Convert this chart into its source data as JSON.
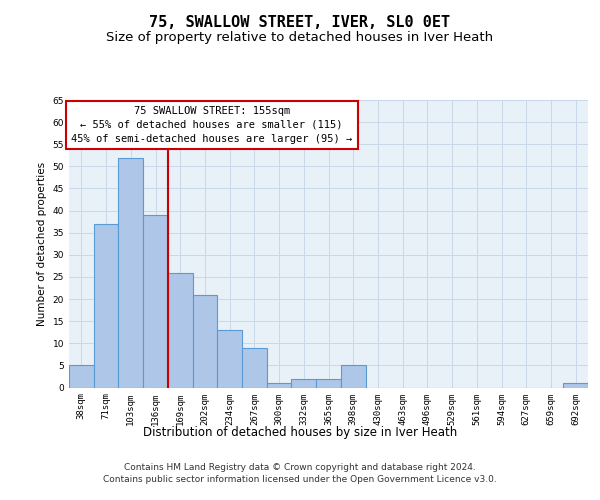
{
  "title": "75, SWALLOW STREET, IVER, SL0 0ET",
  "subtitle": "Size of property relative to detached houses in Iver Heath",
  "xlabel": "Distribution of detached houses by size in Iver Heath",
  "ylabel": "Number of detached properties",
  "categories": [
    "38sqm",
    "71sqm",
    "103sqm",
    "136sqm",
    "169sqm",
    "202sqm",
    "234sqm",
    "267sqm",
    "300sqm",
    "332sqm",
    "365sqm",
    "398sqm",
    "430sqm",
    "463sqm",
    "496sqm",
    "529sqm",
    "561sqm",
    "594sqm",
    "627sqm",
    "659sqm",
    "692sqm"
  ],
  "values": [
    5,
    37,
    52,
    39,
    26,
    21,
    13,
    9,
    1,
    2,
    2,
    5,
    0,
    0,
    0,
    0,
    0,
    0,
    0,
    0,
    1
  ],
  "bar_color": "#aec6e8",
  "bar_edge_color": "#5b9bd5",
  "vline_color": "#cc0000",
  "vline_index": 3.5,
  "annotation_line1": "75 SWALLOW STREET: 155sqm",
  "annotation_line2": "← 55% of detached houses are smaller (115)",
  "annotation_line3": "45% of semi-detached houses are larger (95) →",
  "annotation_box_color": "#ffffff",
  "annotation_box_edge_color": "#cc0000",
  "ylim": [
    0,
    65
  ],
  "yticks": [
    0,
    5,
    10,
    15,
    20,
    25,
    30,
    35,
    40,
    45,
    50,
    55,
    60,
    65
  ],
  "grid_color": "#c8d8e8",
  "background_color": "#e8f0f8",
  "footer_line1": "Contains HM Land Registry data © Crown copyright and database right 2024.",
  "footer_line2": "Contains public sector information licensed under the Open Government Licence v3.0.",
  "title_fontsize": 11,
  "subtitle_fontsize": 9.5,
  "annotation_fontsize": 7.5,
  "ylabel_fontsize": 7.5,
  "xlabel_fontsize": 8.5,
  "tick_fontsize": 6.5,
  "footer_fontsize": 6.5
}
